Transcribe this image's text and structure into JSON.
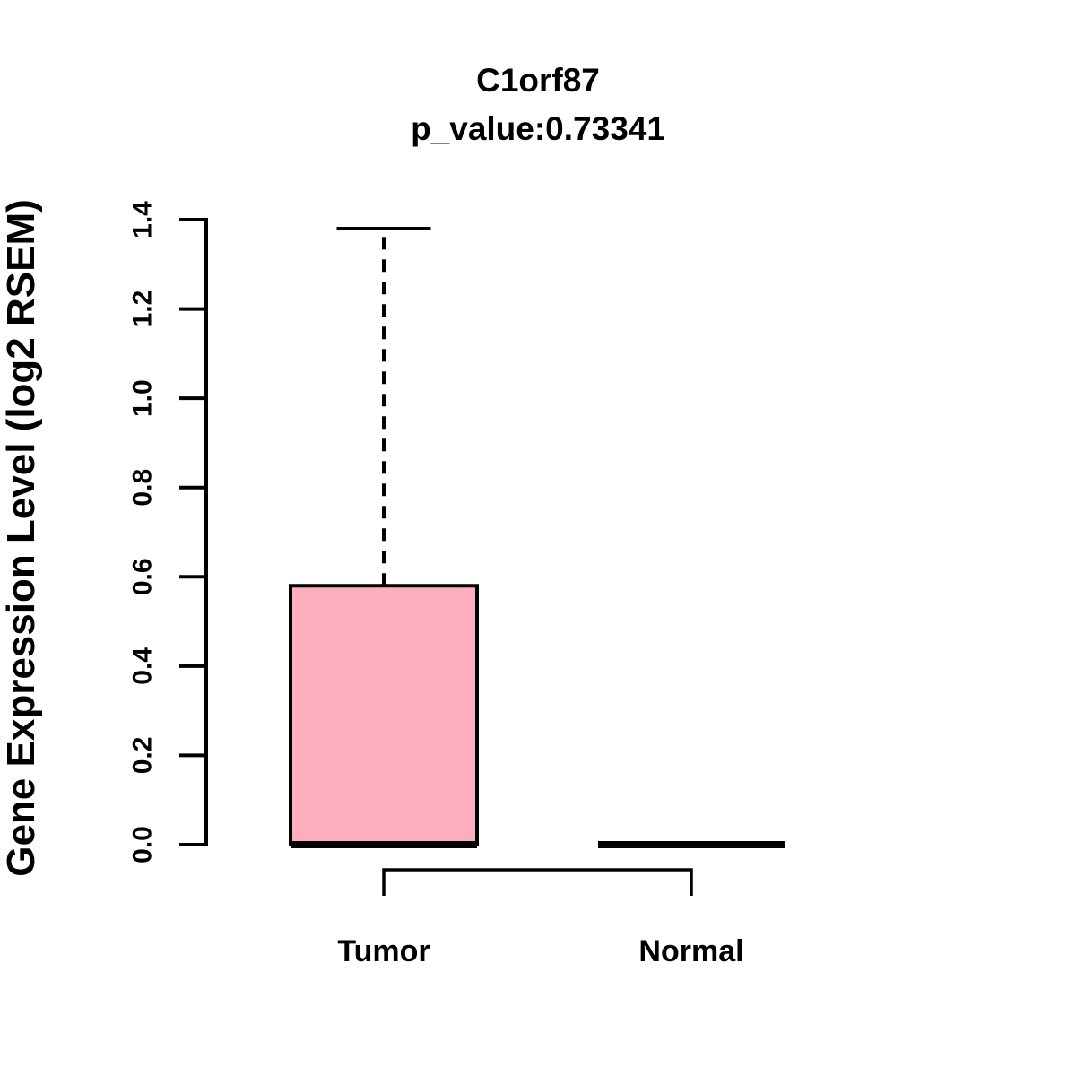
{
  "chart_data": {
    "type": "boxplot",
    "title": "C1orf87",
    "subtitle": "p_value:0.73341",
    "gene": "C1orf87",
    "p_value": 0.73341,
    "ylabel": "Gene Expression Level (log2 RSEM)",
    "ylim": [
      0.0,
      1.4
    ],
    "yticks": [
      "0.0",
      "0.2",
      "0.4",
      "0.6",
      "0.8",
      "1.0",
      "1.2",
      "1.4"
    ],
    "categories": [
      "Tumor",
      "Normal"
    ],
    "series": [
      {
        "name": "Tumor",
        "whisker_low": 0.0,
        "q1": 0.0,
        "median": 0.0,
        "q3": 0.58,
        "whisker_high": 1.38
      },
      {
        "name": "Normal",
        "whisker_low": 0.0,
        "q1": 0.0,
        "median": 0.0,
        "q3": 0.0,
        "whisker_high": 0.0
      }
    ],
    "colors": {
      "box_fill": "#FCAEBF",
      "line": "#000000",
      "background": "#FFFFFF"
    },
    "grid": false,
    "legend": "none",
    "comparison_bracket": {
      "between": [
        "Tumor",
        "Normal"
      ]
    }
  }
}
